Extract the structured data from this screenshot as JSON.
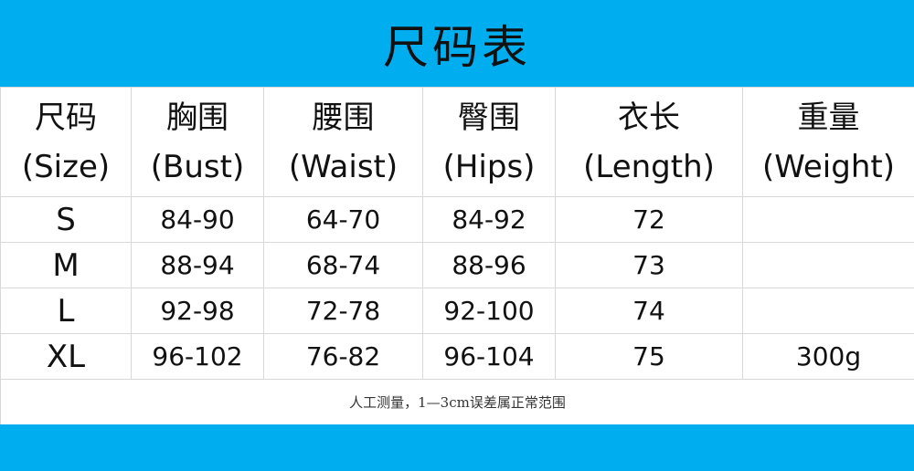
{
  "title": "尺码表",
  "colors": {
    "band": "#00aeef",
    "grid": "#d8d8d8"
  },
  "columns": [
    {
      "zh": "尺码",
      "en": "(Size)"
    },
    {
      "zh": "胸围",
      "en": "(Bust)"
    },
    {
      "zh": "腰围",
      "en": "(Waist)"
    },
    {
      "zh": "臀围",
      "en": "(Hips)"
    },
    {
      "zh": "衣长",
      "en": "(Length)"
    },
    {
      "zh": "重量",
      "en": "(Weight)"
    }
  ],
  "rows": [
    [
      "S",
      "84-90",
      "64-70",
      "84-92",
      "72",
      ""
    ],
    [
      "M",
      "88-94",
      "68-74",
      "88-96",
      "73",
      ""
    ],
    [
      "L",
      "92-98",
      "72-78",
      "92-100",
      "74",
      ""
    ],
    [
      "XL",
      "96-102",
      "76-82",
      "96-104",
      "75",
      "300g"
    ]
  ],
  "note": "人工测量，1—3cm误差属正常范围"
}
